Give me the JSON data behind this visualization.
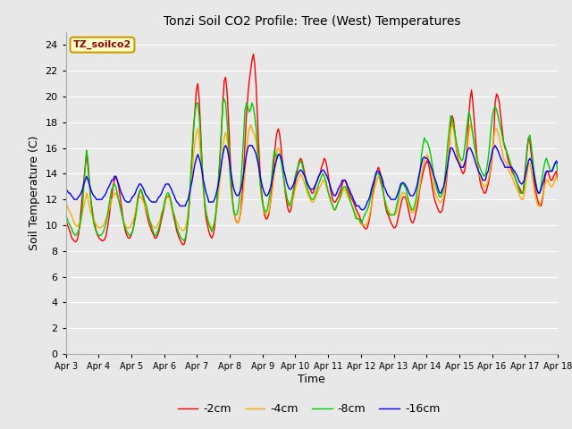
{
  "title": "Tonzi Soil CO2 Profile: Tree (West) Temperatures",
  "xlabel": "Time",
  "ylabel": "Soil Temperature (C)",
  "ylim": [
    0,
    25
  ],
  "yticks": [
    0,
    2,
    4,
    6,
    8,
    10,
    12,
    14,
    16,
    18,
    20,
    22,
    24
  ],
  "fig_bg_color": "#e8e8e8",
  "plot_bg_color": "#e8e8e8",
  "series": {
    "-2cm": {
      "color": "#ff0000",
      "lw": 1.0
    },
    "-4cm": {
      "color": "#ffaa00",
      "lw": 1.0
    },
    "-8cm": {
      "color": "#00cc00",
      "lw": 1.0
    },
    "-16cm": {
      "color": "#0000ff",
      "lw": 1.0
    }
  },
  "watermark_text": "TZ_soilco2",
  "watermark_color": "#990000",
  "watermark_bg": "#ffffcc",
  "watermark_border": "#cc9900",
  "xtick_labels": [
    "Apr 3",
    "Apr 4",
    "Apr 5",
    "Apr 6",
    "Apr 7",
    "Apr 8",
    "Apr 9",
    "Apr 10",
    "Apr 11",
    "Apr 12",
    "Apr 13",
    "Apr 14",
    "Apr 15",
    "Apr 16",
    "Apr 17",
    "Apr 18"
  ],
  "data_2cm": [
    10.4,
    10.1,
    9.8,
    9.5,
    9.1,
    8.9,
    8.8,
    8.7,
    8.8,
    9.2,
    10.0,
    11.2,
    12.4,
    13.5,
    14.6,
    15.8,
    14.5,
    13.2,
    12.0,
    11.2,
    10.5,
    10.0,
    9.5,
    9.2,
    9.0,
    8.9,
    8.8,
    8.8,
    8.9,
    9.2,
    9.8,
    10.5,
    11.4,
    12.2,
    13.0,
    13.5,
    13.8,
    13.5,
    13.0,
    12.3,
    11.5,
    10.7,
    10.0,
    9.5,
    9.2,
    9.0,
    9.0,
    9.2,
    9.5,
    10.0,
    10.8,
    11.5,
    12.2,
    12.6,
    12.8,
    12.5,
    12.0,
    11.5,
    11.0,
    10.5,
    10.1,
    9.8,
    9.5,
    9.3,
    9.0,
    9.0,
    9.2,
    9.5,
    10.0,
    10.5,
    11.0,
    11.5,
    12.0,
    12.2,
    12.3,
    12.0,
    11.5,
    11.0,
    10.5,
    10.0,
    9.5,
    9.2,
    8.9,
    8.7,
    8.5,
    8.5,
    8.8,
    9.5,
    10.5,
    11.8,
    13.5,
    15.5,
    17.5,
    19.0,
    20.5,
    21.0,
    19.8,
    17.5,
    15.0,
    13.0,
    11.5,
    10.5,
    10.0,
    9.5,
    9.2,
    9.0,
    9.2,
    9.8,
    10.8,
    12.0,
    13.5,
    15.2,
    17.2,
    19.5,
    21.2,
    21.5,
    20.5,
    18.5,
    16.0,
    13.8,
    12.0,
    11.0,
    10.5,
    10.2,
    10.2,
    10.5,
    11.2,
    12.5,
    14.2,
    16.5,
    18.5,
    20.0,
    21.2,
    22.0,
    22.8,
    23.3,
    22.5,
    20.8,
    18.2,
    15.8,
    13.8,
    12.5,
    11.5,
    10.8,
    10.5,
    10.5,
    10.8,
    11.5,
    12.5,
    13.8,
    15.2,
    16.5,
    17.2,
    17.5,
    17.0,
    16.0,
    14.8,
    13.5,
    12.5,
    11.8,
    11.2,
    11.0,
    11.2,
    11.8,
    12.5,
    13.2,
    13.8,
    14.5,
    15.0,
    15.2,
    15.0,
    14.5,
    14.0,
    13.5,
    13.2,
    13.0,
    12.8,
    12.5,
    12.5,
    12.8,
    13.2,
    13.5,
    13.8,
    14.0,
    14.5,
    14.8,
    15.2,
    15.0,
    14.5,
    13.8,
    13.0,
    12.5,
    12.0,
    11.8,
    11.8,
    12.0,
    12.2,
    12.5,
    12.8,
    13.2,
    13.5,
    13.5,
    13.2,
    12.8,
    12.5,
    12.2,
    12.0,
    11.8,
    11.5,
    11.2,
    11.0,
    10.8,
    10.5,
    10.2,
    10.0,
    9.8,
    9.7,
    9.8,
    10.2,
    10.8,
    11.5,
    12.5,
    13.2,
    13.8,
    14.2,
    14.5,
    14.2,
    13.8,
    13.0,
    12.2,
    11.5,
    11.0,
    10.8,
    10.5,
    10.2,
    10.0,
    9.8,
    9.8,
    10.0,
    10.5,
    11.0,
    11.5,
    12.0,
    12.2,
    12.2,
    12.0,
    11.5,
    11.0,
    10.5,
    10.2,
    10.2,
    10.5,
    11.0,
    11.5,
    12.2,
    13.0,
    13.5,
    14.0,
    14.5,
    14.8,
    15.0,
    14.8,
    14.2,
    13.5,
    12.8,
    12.2,
    11.8,
    11.5,
    11.2,
    11.0,
    11.0,
    11.2,
    11.8,
    12.5,
    13.5,
    14.8,
    16.2,
    17.8,
    18.5,
    18.2,
    17.2,
    16.0,
    15.2,
    14.8,
    14.5,
    14.2,
    14.0,
    14.2,
    15.0,
    16.5,
    18.5,
    19.8,
    20.5,
    19.5,
    18.0,
    16.5,
    15.2,
    14.2,
    13.5,
    13.0,
    12.8,
    12.5,
    12.5,
    12.8,
    13.2,
    13.8,
    14.5,
    15.5,
    17.0,
    19.5,
    20.2,
    20.0,
    19.5,
    18.5,
    17.5,
    16.5,
    16.0,
    15.8,
    15.2,
    14.8,
    14.5,
    14.2,
    14.0,
    13.8,
    13.5,
    13.2,
    13.0,
    12.8,
    12.5,
    12.5,
    13.5,
    14.8,
    16.0,
    16.8,
    16.5,
    15.5,
    14.5,
    13.5,
    12.8,
    12.2,
    11.8,
    11.5,
    11.5,
    12.0,
    12.8,
    13.8,
    14.2,
    14.2,
    13.8,
    13.5,
    13.5,
    13.8,
    14.0,
    14.2,
    13.5
  ],
  "data_4cm": [
    11.8,
    11.5,
    11.2,
    11.0,
    10.8,
    10.5,
    10.2,
    10.0,
    9.9,
    10.0,
    10.2,
    10.5,
    11.0,
    11.5,
    12.0,
    12.5,
    12.0,
    11.5,
    11.0,
    10.8,
    10.5,
    10.2,
    10.0,
    9.9,
    9.8,
    9.8,
    9.9,
    10.0,
    10.2,
    10.5,
    10.8,
    11.2,
    11.5,
    12.0,
    12.2,
    12.5,
    12.5,
    12.2,
    12.0,
    11.5,
    11.0,
    10.5,
    10.2,
    10.0,
    9.8,
    9.8,
    9.8,
    10.0,
    10.2,
    10.5,
    11.0,
    11.5,
    12.0,
    12.2,
    12.2,
    12.0,
    11.8,
    11.5,
    11.2,
    10.8,
    10.5,
    10.2,
    10.0,
    9.9,
    9.8,
    9.8,
    10.0,
    10.2,
    10.5,
    11.0,
    11.2,
    11.5,
    12.0,
    12.2,
    12.2,
    12.0,
    11.5,
    11.0,
    10.8,
    10.5,
    10.2,
    10.0,
    9.8,
    9.7,
    9.6,
    9.6,
    9.8,
    10.2,
    11.0,
    12.0,
    13.0,
    14.2,
    15.5,
    16.5,
    17.2,
    17.5,
    16.8,
    15.5,
    14.0,
    12.8,
    11.8,
    11.0,
    10.5,
    10.2,
    10.0,
    9.8,
    9.9,
    10.2,
    10.8,
    11.5,
    12.5,
    13.5,
    14.5,
    15.8,
    16.8,
    17.2,
    16.8,
    15.8,
    14.2,
    12.8,
    11.8,
    11.0,
    10.5,
    10.2,
    10.2,
    10.5,
    11.0,
    11.8,
    12.8,
    14.2,
    15.5,
    16.8,
    17.5,
    17.8,
    17.5,
    17.2,
    17.0,
    16.5,
    15.5,
    14.2,
    13.0,
    12.0,
    11.5,
    11.0,
    10.8,
    10.8,
    11.0,
    11.5,
    12.2,
    13.0,
    14.0,
    15.0,
    15.8,
    16.0,
    15.8,
    15.2,
    14.5,
    13.5,
    12.8,
    12.2,
    11.8,
    11.5,
    11.5,
    11.8,
    12.2,
    12.8,
    13.2,
    13.5,
    13.8,
    14.0,
    13.8,
    13.5,
    13.2,
    12.8,
    12.5,
    12.2,
    12.0,
    11.8,
    11.8,
    12.0,
    12.2,
    12.5,
    12.8,
    13.0,
    13.2,
    13.5,
    13.5,
    13.2,
    12.8,
    12.5,
    12.0,
    11.8,
    11.5,
    11.2,
    11.2,
    11.5,
    11.8,
    12.0,
    12.2,
    12.5,
    12.8,
    12.8,
    12.5,
    12.2,
    12.0,
    11.8,
    11.5,
    11.2,
    11.0,
    10.8,
    10.5,
    10.5,
    10.2,
    10.0,
    10.0,
    10.0,
    10.0,
    10.2,
    10.5,
    11.0,
    11.5,
    12.2,
    12.8,
    13.2,
    13.5,
    13.8,
    13.5,
    13.2,
    12.8,
    12.2,
    11.8,
    11.5,
    11.2,
    11.0,
    10.8,
    10.8,
    10.8,
    10.8,
    11.0,
    11.5,
    12.0,
    12.2,
    12.5,
    12.5,
    12.5,
    12.2,
    11.8,
    11.5,
    11.2,
    11.0,
    11.0,
    11.2,
    11.5,
    12.0,
    12.5,
    13.2,
    14.0,
    14.5,
    15.0,
    15.2,
    15.5,
    15.2,
    14.8,
    14.2,
    13.5,
    13.0,
    12.5,
    12.2,
    12.0,
    11.8,
    11.8,
    12.0,
    12.2,
    13.0,
    14.0,
    15.2,
    16.5,
    17.5,
    17.8,
    17.5,
    16.8,
    16.0,
    15.5,
    15.0,
    14.8,
    14.5,
    14.5,
    14.8,
    15.2,
    16.0,
    17.2,
    17.8,
    17.5,
    17.0,
    16.2,
    15.5,
    14.8,
    14.2,
    13.8,
    13.5,
    13.2,
    13.0,
    13.0,
    13.2,
    13.5,
    14.0,
    14.8,
    15.8,
    16.8,
    17.5,
    17.5,
    17.2,
    16.8,
    16.2,
    15.8,
    15.2,
    15.0,
    14.8,
    14.5,
    14.2,
    14.0,
    13.8,
    13.5,
    13.2,
    13.0,
    12.8,
    12.5,
    12.2,
    12.0,
    12.0,
    12.5,
    13.2,
    14.0,
    14.8,
    14.8,
    14.2,
    13.5,
    12.8,
    12.2,
    11.8,
    11.5,
    11.5,
    11.8,
    12.2,
    12.8,
    13.2,
    13.5,
    13.5,
    13.2,
    13.0,
    13.0,
    13.2,
    13.5,
    13.8,
    13.5
  ],
  "data_8cm": [
    10.8,
    10.5,
    10.2,
    10.0,
    9.8,
    9.5,
    9.3,
    9.2,
    9.3,
    9.5,
    9.8,
    10.5,
    11.5,
    13.0,
    14.5,
    15.8,
    15.0,
    13.5,
    12.0,
    11.0,
    10.2,
    9.8,
    9.5,
    9.3,
    9.2,
    9.2,
    9.3,
    9.5,
    9.8,
    10.2,
    10.8,
    11.5,
    12.2,
    12.8,
    13.0,
    13.2,
    13.0,
    12.5,
    12.0,
    11.5,
    11.0,
    10.5,
    10.0,
    9.8,
    9.5,
    9.3,
    9.2,
    9.3,
    9.5,
    10.0,
    10.5,
    11.2,
    12.0,
    12.5,
    12.8,
    12.5,
    12.2,
    11.8,
    11.5,
    11.0,
    10.5,
    10.2,
    9.8,
    9.5,
    9.2,
    9.2,
    9.5,
    9.8,
    10.2,
    10.8,
    11.2,
    11.8,
    12.2,
    12.5,
    12.5,
    12.2,
    11.8,
    11.2,
    10.8,
    10.2,
    9.8,
    9.5,
    9.2,
    9.0,
    8.9,
    8.8,
    9.0,
    9.5,
    10.5,
    12.0,
    14.0,
    16.0,
    17.8,
    18.8,
    19.5,
    19.5,
    18.5,
    16.8,
    14.8,
    13.0,
    11.8,
    11.0,
    10.5,
    10.0,
    9.8,
    9.5,
    9.8,
    10.2,
    11.0,
    12.2,
    13.8,
    15.5,
    17.5,
    19.5,
    19.8,
    19.5,
    18.2,
    16.5,
    14.5,
    12.8,
    11.8,
    11.0,
    10.8,
    10.8,
    11.2,
    12.0,
    13.2,
    15.0,
    17.0,
    19.0,
    19.5,
    19.2,
    18.8,
    19.0,
    19.5,
    19.2,
    18.5,
    17.5,
    16.0,
    14.5,
    13.2,
    12.2,
    11.5,
    11.2,
    11.0,
    11.2,
    11.8,
    12.5,
    13.5,
    14.8,
    15.8,
    15.5,
    15.2,
    15.5,
    15.5,
    15.0,
    14.2,
    13.5,
    12.8,
    12.2,
    11.8,
    11.5,
    11.8,
    12.2,
    13.0,
    13.8,
    14.2,
    14.5,
    14.8,
    15.0,
    14.8,
    14.2,
    13.8,
    13.2,
    12.8,
    12.5,
    12.2,
    12.0,
    12.0,
    12.2,
    12.5,
    12.8,
    13.2,
    13.5,
    13.8,
    14.0,
    13.8,
    13.5,
    13.0,
    12.5,
    12.2,
    11.8,
    11.5,
    11.2,
    11.2,
    11.5,
    11.8,
    12.0,
    12.5,
    12.8,
    13.0,
    13.0,
    12.8,
    12.5,
    12.2,
    11.8,
    11.5,
    11.2,
    10.8,
    10.5,
    10.5,
    10.5,
    10.2,
    10.2,
    10.5,
    10.8,
    11.0,
    11.2,
    11.5,
    12.0,
    12.5,
    13.0,
    13.5,
    13.8,
    14.0,
    14.0,
    13.8,
    13.2,
    12.8,
    12.2,
    11.8,
    11.2,
    11.0,
    10.8,
    10.8,
    10.8,
    10.8,
    11.0,
    11.5,
    12.0,
    12.5,
    13.0,
    13.2,
    13.2,
    13.0,
    12.8,
    12.2,
    11.8,
    11.5,
    11.2,
    11.2,
    11.5,
    12.0,
    12.8,
    13.5,
    14.2,
    15.5,
    16.2,
    16.8,
    16.5,
    16.5,
    16.2,
    15.8,
    15.2,
    14.5,
    13.8,
    13.2,
    12.8,
    12.5,
    12.2,
    12.2,
    12.5,
    13.0,
    14.0,
    15.2,
    16.5,
    17.5,
    18.5,
    18.2,
    17.8,
    17.2,
    16.5,
    16.0,
    15.5,
    15.2,
    15.0,
    15.2,
    16.0,
    17.0,
    18.0,
    18.8,
    18.5,
    17.8,
    17.0,
    16.2,
    15.8,
    15.2,
    14.8,
    14.5,
    14.2,
    14.0,
    13.8,
    14.0,
    14.5,
    15.2,
    16.2,
    17.5,
    18.5,
    19.0,
    19.2,
    19.0,
    18.5,
    18.0,
    17.5,
    17.0,
    16.5,
    16.2,
    15.8,
    15.5,
    15.2,
    14.8,
    14.5,
    14.2,
    13.8,
    13.5,
    13.2,
    12.8,
    12.5,
    12.5,
    12.5,
    13.2,
    14.5,
    15.8,
    16.8,
    17.0,
    16.2,
    15.2,
    14.2,
    13.5,
    12.8,
    12.5,
    12.5,
    13.0,
    13.8,
    14.5,
    15.0,
    15.2,
    14.8,
    14.5,
    14.2,
    14.2,
    14.5,
    14.8,
    14.8,
    14.2
  ],
  "data_16cm": [
    12.8,
    12.7,
    12.5,
    12.5,
    12.3,
    12.2,
    12.0,
    12.0,
    12.0,
    12.2,
    12.3,
    12.5,
    12.8,
    13.2,
    13.5,
    13.8,
    13.5,
    13.2,
    12.8,
    12.5,
    12.3,
    12.2,
    12.0,
    12.0,
    12.0,
    12.0,
    12.0,
    12.2,
    12.3,
    12.5,
    12.8,
    13.0,
    13.2,
    13.5,
    13.5,
    13.8,
    13.8,
    13.5,
    13.2,
    12.8,
    12.5,
    12.3,
    12.0,
    11.9,
    11.8,
    11.8,
    11.8,
    12.0,
    12.2,
    12.3,
    12.5,
    12.8,
    13.0,
    13.2,
    13.2,
    13.0,
    12.8,
    12.5,
    12.3,
    12.2,
    12.0,
    11.9,
    11.8,
    11.8,
    11.8,
    11.8,
    12.0,
    12.2,
    12.3,
    12.5,
    12.8,
    13.0,
    13.2,
    13.2,
    13.2,
    13.0,
    12.8,
    12.5,
    12.3,
    12.0,
    11.8,
    11.7,
    11.5,
    11.5,
    11.5,
    11.5,
    11.5,
    11.8,
    12.0,
    12.5,
    13.0,
    13.5,
    14.2,
    14.8,
    15.2,
    15.5,
    15.2,
    14.8,
    14.2,
    13.5,
    13.0,
    12.5,
    12.2,
    11.8,
    11.8,
    11.8,
    11.8,
    12.0,
    12.3,
    12.8,
    13.3,
    14.0,
    14.8,
    15.5,
    16.0,
    16.2,
    16.0,
    15.5,
    14.8,
    14.0,
    13.3,
    12.8,
    12.5,
    12.3,
    12.3,
    12.5,
    12.8,
    13.3,
    14.0,
    14.8,
    15.5,
    16.0,
    16.2,
    16.2,
    16.2,
    16.0,
    15.8,
    15.5,
    15.0,
    14.5,
    13.8,
    13.2,
    12.8,
    12.5,
    12.3,
    12.3,
    12.5,
    12.8,
    13.2,
    13.8,
    14.3,
    14.8,
    15.2,
    15.5,
    15.5,
    15.2,
    14.8,
    14.2,
    13.8,
    13.3,
    13.0,
    12.8,
    12.8,
    13.0,
    13.2,
    13.5,
    13.8,
    14.0,
    14.2,
    14.3,
    14.2,
    14.0,
    13.8,
    13.5,
    13.2,
    13.0,
    12.8,
    12.8,
    12.8,
    13.0,
    13.2,
    13.5,
    13.8,
    14.0,
    14.2,
    14.3,
    14.2,
    14.0,
    13.8,
    13.5,
    13.2,
    12.8,
    12.5,
    12.3,
    12.3,
    12.5,
    12.8,
    13.0,
    13.2,
    13.5,
    13.5,
    13.5,
    13.3,
    13.0,
    12.8,
    12.5,
    12.3,
    12.0,
    11.8,
    11.5,
    11.5,
    11.5,
    11.3,
    11.2,
    11.2,
    11.3,
    11.5,
    11.8,
    12.0,
    12.3,
    12.8,
    13.2,
    13.5,
    14.0,
    14.2,
    14.2,
    14.0,
    13.8,
    13.5,
    13.0,
    12.8,
    12.5,
    12.3,
    12.2,
    12.0,
    12.0,
    12.0,
    12.0,
    12.2,
    12.5,
    12.8,
    13.2,
    13.3,
    13.3,
    13.2,
    13.0,
    12.8,
    12.5,
    12.3,
    12.3,
    12.3,
    12.5,
    12.8,
    13.2,
    13.8,
    14.3,
    14.8,
    15.2,
    15.3,
    15.2,
    15.2,
    15.0,
    14.8,
    14.5,
    14.2,
    13.8,
    13.5,
    13.2,
    12.8,
    12.5,
    12.5,
    12.8,
    13.0,
    13.5,
    14.2,
    14.8,
    15.5,
    16.0,
    16.0,
    15.8,
    15.5,
    15.2,
    15.0,
    14.8,
    14.5,
    14.5,
    14.5,
    14.8,
    15.2,
    15.8,
    16.0,
    16.0,
    15.8,
    15.5,
    15.2,
    14.8,
    14.5,
    14.2,
    14.0,
    13.8,
    13.5,
    13.5,
    13.5,
    14.0,
    14.2,
    14.8,
    15.2,
    15.8,
    16.0,
    16.2,
    16.0,
    15.8,
    15.5,
    15.2,
    15.0,
    14.8,
    14.5,
    14.5,
    14.5,
    14.5,
    14.5,
    14.5,
    14.3,
    14.2,
    14.0,
    13.8,
    13.5,
    13.3,
    13.2,
    13.3,
    13.5,
    14.0,
    14.5,
    15.0,
    15.2,
    15.0,
    14.5,
    13.8,
    13.3,
    12.8,
    12.5,
    12.5,
    12.8,
    13.2,
    13.5,
    14.0,
    14.2,
    14.2,
    14.2,
    14.2,
    14.2,
    14.5,
    14.8,
    15.0,
    14.8
  ]
}
